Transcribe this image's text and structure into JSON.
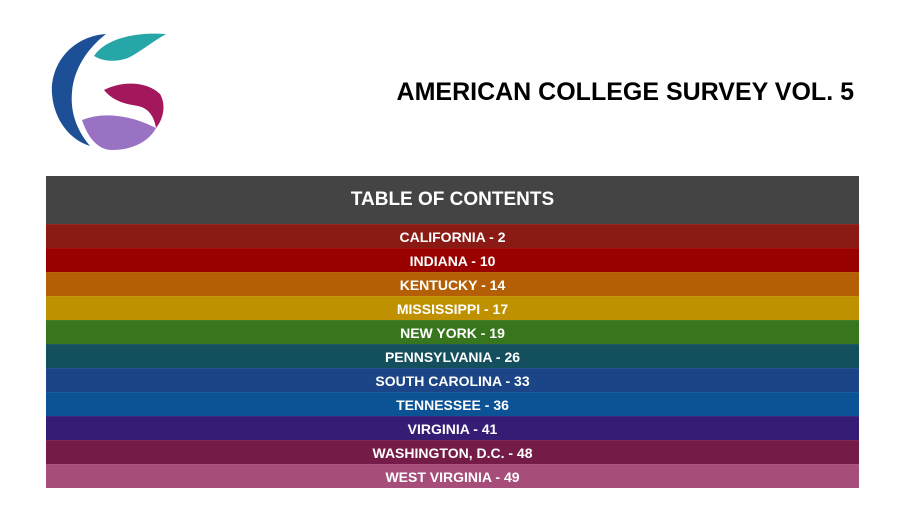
{
  "document": {
    "title": "AMERICAN COLLEGE SURVEY VOL. 5",
    "logo_icon": "stylized-g-logo-icon",
    "logo_colors": [
      "#1c4f96",
      "#27a6a8",
      "#a3175d",
      "#9a72c4"
    ]
  },
  "toc": {
    "header": "TABLE OF CONTENTS",
    "header_color": "#444444",
    "rows": [
      {
        "label": "CALIFORNIA - 2",
        "color": "#8b1a14"
      },
      {
        "label": "INDIANA - 10",
        "color": "#990000"
      },
      {
        "label": "KENTUCKY - 14",
        "color": "#b45f06"
      },
      {
        "label": "MISSISSIPPI - 17",
        "color": "#bf9000"
      },
      {
        "label": "NEW YORK - 19",
        "color": "#38761d"
      },
      {
        "label": "PENNSYLVANIA - 26",
        "color": "#134f5c"
      },
      {
        "label": "SOUTH CAROLINA - 33",
        "color": "#1c4587"
      },
      {
        "label": "TENNESSEE - 36",
        "color": "#0b5394"
      },
      {
        "label": "VIRGINIA - 41",
        "color": "#351c75"
      },
      {
        "label": "WASHINGTON, D.C. - 48",
        "color": "#741b47"
      },
      {
        "label": "WEST VIRGINIA - 49",
        "color": "#a64d79"
      }
    ]
  }
}
